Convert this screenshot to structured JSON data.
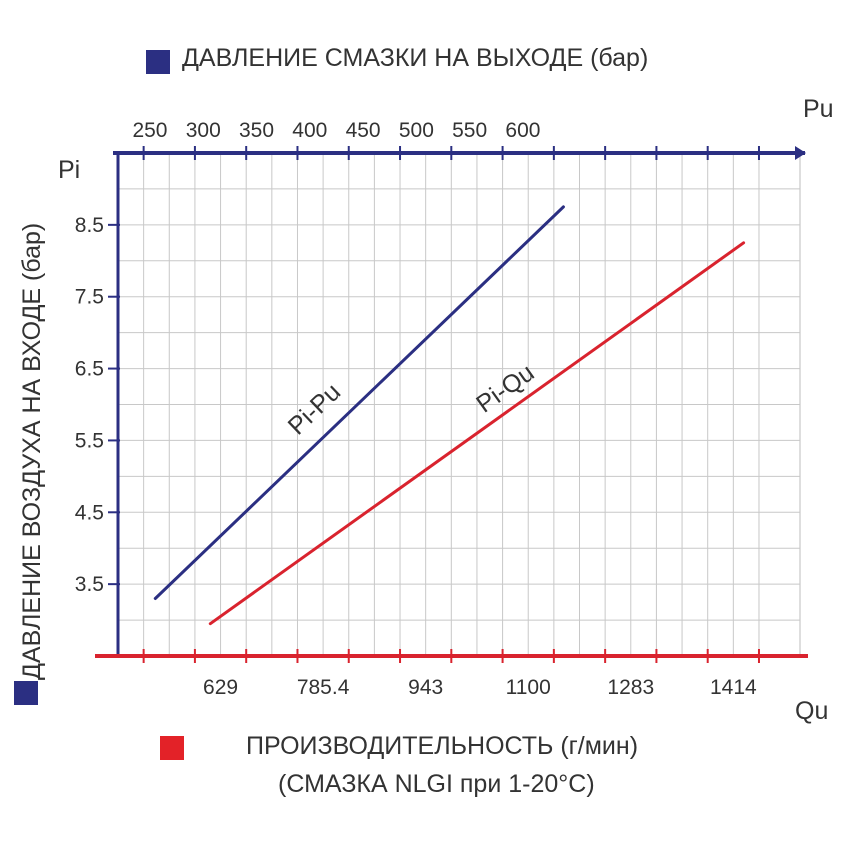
{
  "colors": {
    "top_axis": "#2b2f82",
    "bottom_axis": "#d9232e",
    "grid": "#c8c8c8",
    "text": "#333333"
  },
  "legend": {
    "top": {
      "text": "ДАВЛЕНИЕ СМАЗКИ НА ВЫХОДЕ (бар)",
      "color": "#2b2f82"
    },
    "left": {
      "text": "ДАВЛЕНИЕ ВОЗДУХА НА ВХОДЕ (бар)",
      "color": "#2b2f82"
    },
    "bottom": {
      "line1": "ПРОИЗВОДИТЕЛЬНОСТЬ (г/мин)",
      "line2": "(СМАЗКА NLGI при 1-20°C)",
      "color": "#d9232e"
    }
  },
  "chart_data": {
    "type": "line",
    "y_axis": {
      "label": "Pi",
      "ticks": [
        "3.5",
        "4.5",
        "5.5",
        "6.5",
        "7.5",
        "8.5"
      ],
      "range": [
        2.5,
        9.5
      ],
      "grid": true
    },
    "x_top_axis": {
      "label": "Pu",
      "ticks": [
        "250",
        "300",
        "350",
        "400",
        "450",
        "500",
        "550",
        "600"
      ],
      "range": [
        220,
        860
      ]
    },
    "x_bottom_axis": {
      "label": "Qu",
      "ticks": [
        "629",
        "785.4",
        "943",
        "1100",
        "1283",
        "1414"
      ],
      "tick_positions": [
        1,
        3,
        5,
        7,
        9,
        11
      ],
      "range": [
        -1,
        12.3
      ]
    },
    "series": [
      {
        "name": "Pi-Pu",
        "axis": "top",
        "color": "#2b2f82",
        "points": [
          {
            "x": 255,
            "y": 3.3
          },
          {
            "x": 638,
            "y": 8.75
          }
        ]
      },
      {
        "name": "Pi-Qu",
        "axis": "bottom",
        "color": "#d9232e",
        "points": [
          {
            "x": 0.8,
            "y": 2.95
          },
          {
            "x": 11.2,
            "y": 8.25
          }
        ]
      }
    ]
  }
}
